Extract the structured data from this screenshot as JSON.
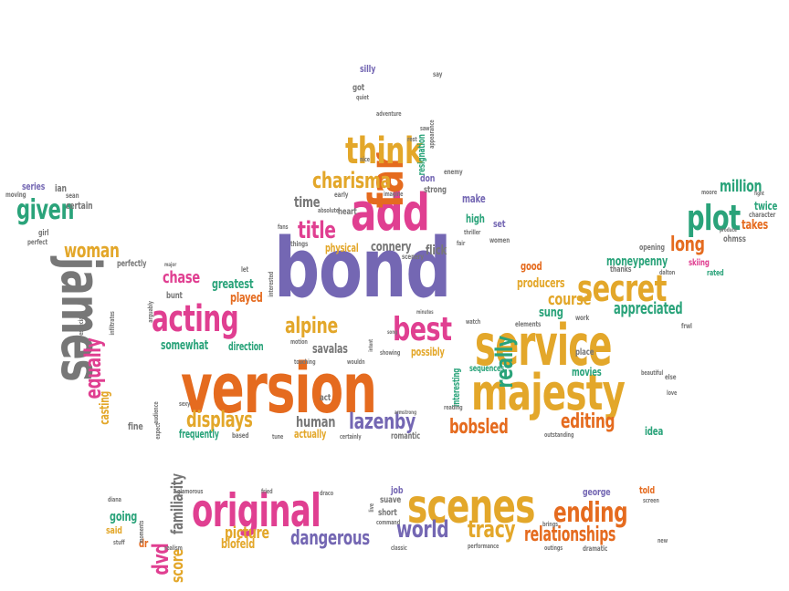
{
  "palette": {
    "purple": "#7467b3",
    "orange": "#e56b1f",
    "pink": "#e03f91",
    "gold": "#e3a72a",
    "green": "#2aa37a",
    "gray": "#777777"
  },
  "words": [
    {
      "text": "bond",
      "color": "purple"
    },
    {
      "text": "version",
      "color": "orange"
    },
    {
      "text": "service",
      "color": "gold"
    },
    {
      "text": "majesty",
      "color": "gold"
    },
    {
      "text": "james",
      "color": "gray"
    },
    {
      "text": "scenes",
      "color": "gold"
    },
    {
      "text": "original",
      "color": "pink"
    },
    {
      "text": "add",
      "color": "pink"
    },
    {
      "text": "far",
      "color": "orange"
    },
    {
      "text": "think",
      "color": "gold"
    },
    {
      "text": "secret",
      "color": "gold"
    },
    {
      "text": "acting",
      "color": "pink"
    },
    {
      "text": "plot",
      "color": "green"
    },
    {
      "text": "best",
      "color": "pink"
    },
    {
      "text": "given",
      "color": "green"
    },
    {
      "text": "ending",
      "color": "orange"
    },
    {
      "text": "really",
      "color": "green"
    },
    {
      "text": "charisma",
      "color": "gold"
    },
    {
      "text": "title",
      "color": "pink"
    },
    {
      "text": "tracy",
      "color": "gold"
    },
    {
      "text": "world",
      "color": "purple"
    },
    {
      "text": "lazenby",
      "color": "purple"
    },
    {
      "text": "alpine",
      "color": "gold"
    },
    {
      "text": "displays",
      "color": "gold"
    },
    {
      "text": "woman",
      "color": "gold"
    },
    {
      "text": "relationships",
      "color": "orange"
    },
    {
      "text": "dangerous",
      "color": "purple"
    },
    {
      "text": "bobsled",
      "color": "orange"
    },
    {
      "text": "editing",
      "color": "orange"
    },
    {
      "text": "equally",
      "color": "pink"
    },
    {
      "text": "long",
      "color": "orange"
    },
    {
      "text": "million",
      "color": "green"
    },
    {
      "text": "appreciated",
      "color": "green"
    },
    {
      "text": "chase",
      "color": "pink"
    },
    {
      "text": "familiarity",
      "color": "gray"
    },
    {
      "text": "dvd",
      "color": "pink"
    },
    {
      "text": "picture",
      "color": "gold"
    },
    {
      "text": "connery",
      "color": "gray"
    },
    {
      "text": "time",
      "color": "gray"
    },
    {
      "text": "score",
      "color": "gold"
    },
    {
      "text": "moneypenny",
      "color": "green"
    },
    {
      "text": "greatest",
      "color": "green"
    },
    {
      "text": "course",
      "color": "gold"
    },
    {
      "text": "producers",
      "color": "gold"
    },
    {
      "text": "human",
      "color": "gray"
    },
    {
      "text": "twice",
      "color": "green"
    },
    {
      "text": "somewhat",
      "color": "green"
    },
    {
      "text": "direction",
      "color": "green"
    },
    {
      "text": "played",
      "color": "orange"
    },
    {
      "text": "blofeld",
      "color": "gold"
    },
    {
      "text": "sung",
      "color": "green"
    },
    {
      "text": "going",
      "color": "green"
    },
    {
      "text": "savalas",
      "color": "gray"
    },
    {
      "text": "flick",
      "color": "gray"
    },
    {
      "text": "physical",
      "color": "gold"
    },
    {
      "text": "certain",
      "color": "gray"
    },
    {
      "text": "series",
      "color": "purple"
    },
    {
      "text": "ian",
      "color": "gray"
    },
    {
      "text": "takes",
      "color": "orange"
    },
    {
      "text": "make",
      "color": "purple"
    },
    {
      "text": "high",
      "color": "green"
    },
    {
      "text": "don",
      "color": "purple"
    },
    {
      "text": "strong",
      "color": "gray"
    },
    {
      "text": "heart",
      "color": "gray"
    },
    {
      "text": "possibly",
      "color": "gold"
    },
    {
      "text": "actually",
      "color": "gold"
    },
    {
      "text": "romantic",
      "color": "gray"
    },
    {
      "text": "movies",
      "color": "green"
    },
    {
      "text": "idea",
      "color": "green"
    },
    {
      "text": "place",
      "color": "gray"
    },
    {
      "text": "fine",
      "color": "gray"
    },
    {
      "text": "act",
      "color": "gray"
    },
    {
      "text": "job",
      "color": "purple"
    },
    {
      "text": "short",
      "color": "gray"
    },
    {
      "text": "suave",
      "color": "gray"
    },
    {
      "text": "george",
      "color": "purple"
    },
    {
      "text": "told",
      "color": "orange"
    },
    {
      "text": "said",
      "color": "gold"
    },
    {
      "text": "dr",
      "color": "orange"
    },
    {
      "text": "set",
      "color": "purple"
    },
    {
      "text": "good",
      "color": "orange"
    },
    {
      "text": "got",
      "color": "gray"
    },
    {
      "text": "silly",
      "color": "purple"
    },
    {
      "text": "resignation",
      "color": "green"
    },
    {
      "text": "casting",
      "color": "gold"
    },
    {
      "text": "frequently",
      "color": "green"
    },
    {
      "text": "sequences",
      "color": "green"
    },
    {
      "text": "interesting",
      "color": "green"
    },
    {
      "text": "perfectly",
      "color": "gray"
    },
    {
      "text": "rated",
      "color": "green"
    },
    {
      "text": "ohmss",
      "color": "gray"
    },
    {
      "text": "opening",
      "color": "gray"
    },
    {
      "text": "thanks",
      "color": "gray"
    },
    {
      "text": "skiing",
      "color": "pink"
    },
    {
      "text": "girl",
      "color": "gray"
    },
    {
      "text": "perfect",
      "color": "gray"
    },
    {
      "text": "character",
      "color": "gray"
    },
    {
      "text": "moving",
      "color": "gray"
    },
    {
      "text": "sean",
      "color": "gray"
    },
    {
      "text": "things",
      "color": "gray"
    },
    {
      "text": "early",
      "color": "gray"
    },
    {
      "text": "enemy",
      "color": "gray"
    },
    {
      "text": "imagine",
      "color": "gray"
    },
    {
      "text": "nice",
      "color": "gray"
    },
    {
      "text": "rest",
      "color": "gray"
    },
    {
      "text": "saw",
      "color": "gray"
    },
    {
      "text": "adventure",
      "color": "gray"
    },
    {
      "text": "quiet",
      "color": "gray"
    },
    {
      "text": "say",
      "color": "gray"
    },
    {
      "text": "appearance",
      "color": "gray"
    },
    {
      "text": "absolute",
      "color": "gray"
    },
    {
      "text": "fans",
      "color": "gray"
    },
    {
      "text": "scenery",
      "color": "gray"
    },
    {
      "text": "women",
      "color": "gray"
    },
    {
      "text": "thriller",
      "color": "gray"
    },
    {
      "text": "fair",
      "color": "gray"
    },
    {
      "text": "let",
      "color": "gray"
    },
    {
      "text": "interested",
      "color": "gray"
    },
    {
      "text": "bunt",
      "color": "gray"
    },
    {
      "text": "minutes",
      "color": "gray"
    },
    {
      "text": "watch",
      "color": "gray"
    },
    {
      "text": "elements",
      "color": "gray"
    },
    {
      "text": "work",
      "color": "gray"
    },
    {
      "text": "beautiful",
      "color": "gray"
    },
    {
      "text": "else",
      "color": "gray"
    },
    {
      "text": "love",
      "color": "gray"
    },
    {
      "text": "frwl",
      "color": "gray"
    },
    {
      "text": "dalton",
      "color": "gray"
    },
    {
      "text": "touching",
      "color": "gray"
    },
    {
      "text": "wouldn",
      "color": "gray"
    },
    {
      "text": "motion",
      "color": "gray"
    },
    {
      "text": "showing",
      "color": "gray"
    },
    {
      "text": "reading",
      "color": "gray"
    },
    {
      "text": "outstanding",
      "color": "gray"
    },
    {
      "text": "certainly",
      "color": "gray"
    },
    {
      "text": "based",
      "color": "gray"
    },
    {
      "text": "tune",
      "color": "gray"
    },
    {
      "text": "sexy",
      "color": "gray"
    },
    {
      "text": "audience",
      "color": "gray"
    },
    {
      "text": "especially",
      "color": "gray"
    },
    {
      "text": "infiltrates",
      "color": "gray"
    },
    {
      "text": "arguably",
      "color": "gray"
    },
    {
      "text": "expect",
      "color": "gray"
    },
    {
      "text": "dramatic",
      "color": "gray"
    },
    {
      "text": "new",
      "color": "gray"
    },
    {
      "text": "performance",
      "color": "gray"
    },
    {
      "text": "classic",
      "color": "gray"
    },
    {
      "text": "command",
      "color": "gray"
    },
    {
      "text": "song",
      "color": "gray"
    },
    {
      "text": "realism",
      "color": "gray"
    },
    {
      "text": "stuff",
      "color": "gray"
    },
    {
      "text": "diana",
      "color": "gray"
    },
    {
      "text": "moments",
      "color": "gray"
    },
    {
      "text": "glamorous",
      "color": "gray"
    },
    {
      "text": "fried",
      "color": "gray"
    },
    {
      "text": "draco",
      "color": "gray"
    },
    {
      "text": "live",
      "color": "gray"
    },
    {
      "text": "brings",
      "color": "gray"
    },
    {
      "text": "screen",
      "color": "gray"
    },
    {
      "text": "outings",
      "color": "gray"
    },
    {
      "text": "fight",
      "color": "gray"
    },
    {
      "text": "moore",
      "color": "gray"
    },
    {
      "text": "produce",
      "color": "gray"
    },
    {
      "text": "major",
      "color": "gray"
    },
    {
      "text": "intent",
      "color": "gray"
    },
    {
      "text": "armstrong",
      "color": "gray"
    }
  ]
}
